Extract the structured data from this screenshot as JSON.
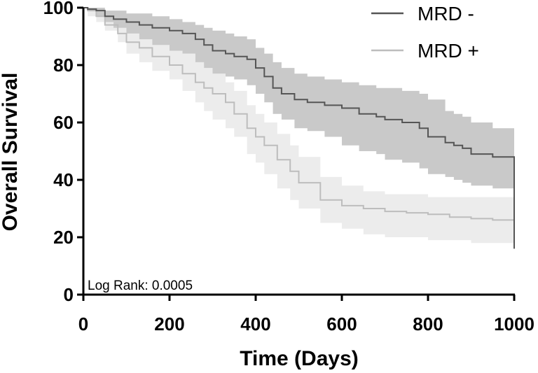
{
  "chart_data": {
    "type": "line",
    "subtype": "kaplan-meier-step",
    "title": "",
    "xlabel": "Time (Days)",
    "ylabel": "Overall Survival",
    "xlim": [
      0,
      1000
    ],
    "ylim": [
      0,
      100
    ],
    "xticks": [
      0,
      200,
      400,
      600,
      800,
      1000
    ],
    "yticks": [
      0,
      20,
      40,
      60,
      80,
      100
    ],
    "grid": false,
    "legend_position": "top-right",
    "annotation": "Log Rank: 0.0005",
    "series": [
      {
        "name": "MRD -",
        "color": "#555555",
        "band_color": "#c9c9c9",
        "x": [
          0,
          10,
          30,
          50,
          70,
          100,
          130,
          160,
          200,
          230,
          260,
          280,
          300,
          330,
          350,
          380,
          400,
          420,
          440,
          460,
          490,
          520,
          560,
          600,
          640,
          680,
          700,
          740,
          780,
          800,
          840,
          860,
          880,
          900,
          950,
          1000
        ],
        "y": [
          100,
          99.5,
          99,
          97,
          96,
          95,
          94,
          93,
          92,
          91,
          89,
          87,
          85,
          84,
          83,
          82,
          79,
          76,
          72,
          70,
          68,
          67,
          66,
          65,
          63,
          62,
          61,
          60,
          58,
          55,
          53,
          52,
          51,
          49,
          48,
          47
        ],
        "lower": [
          100,
          99,
          97,
          95,
          93,
          91,
          89,
          87,
          85,
          84,
          81,
          79,
          77,
          76,
          75,
          73,
          70,
          67,
          63,
          61,
          58,
          57,
          55,
          52,
          50,
          49,
          47,
          46,
          44,
          42,
          41,
          40,
          39,
          38,
          37,
          36
        ],
        "upper": [
          100,
          100,
          100,
          99,
          99,
          98,
          98,
          97,
          96,
          95,
          94,
          93,
          92,
          91,
          90,
          89,
          86,
          84,
          81,
          79,
          77,
          76,
          75,
          74,
          73,
          72,
          72,
          71,
          70,
          68,
          64,
          63,
          62,
          60,
          58,
          57
        ],
        "final_drop": 16
      },
      {
        "name": "MRD +",
        "color": "#bdbdbd",
        "band_color": "#ececec",
        "x": [
          0,
          10,
          30,
          50,
          80,
          100,
          130,
          160,
          200,
          230,
          260,
          280,
          300,
          330,
          350,
          380,
          400,
          420,
          450,
          480,
          500,
          550,
          600,
          650,
          700,
          750,
          800,
          850,
          900,
          950,
          1000
        ],
        "y": [
          100,
          99,
          97,
          94,
          91,
          88,
          86,
          83,
          80,
          77,
          74,
          72,
          70,
          67,
          63,
          58,
          55,
          52,
          47,
          43,
          39,
          33,
          31,
          30,
          29,
          28.5,
          28,
          27,
          26.5,
          26,
          26
        ],
        "lower": [
          100,
          97,
          95,
          92,
          88,
          84,
          81,
          78,
          75,
          71,
          67,
          64,
          61,
          58,
          55,
          49,
          46,
          42,
          37,
          33,
          30,
          25,
          23,
          21,
          20,
          20,
          19,
          19,
          18,
          18,
          18
        ],
        "upper": [
          100,
          100,
          99,
          97,
          95,
          93,
          91,
          89,
          86,
          84,
          81,
          79,
          77,
          74,
          71,
          66,
          63,
          60,
          56,
          52,
          48,
          41,
          38,
          36,
          35,
          35,
          34,
          34,
          34,
          34,
          34
        ]
      }
    ]
  }
}
